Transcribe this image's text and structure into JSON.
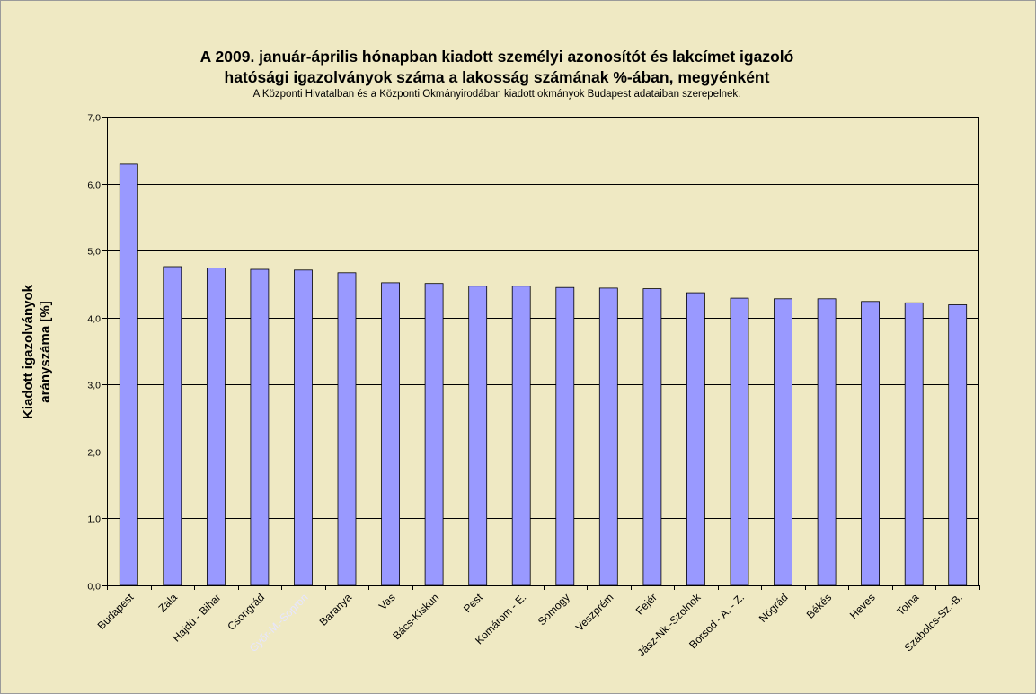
{
  "chart_data": {
    "type": "bar",
    "title_line1": "A 2009. január-április hónapban kiadott személyi azonosítót és lakcímet igazoló",
    "title_line2": "hatósági igazolványok száma a lakosság  számának %-ában, megyénként",
    "subtitle": "A Központi Hivatalban és a Központi Okmányirodában kiadott okmányok Budapest adataiban szerepelnek.",
    "ylabel_line1": "Kiadott igazolványok",
    "ylabel_line2": "arányszáma [%]",
    "xlabel": "",
    "ylim": [
      0,
      7
    ],
    "ytick_step": 1,
    "yticks": [
      "0,0",
      "1,0",
      "2,0",
      "3,0",
      "4,0",
      "5,0",
      "6,0",
      "7,0"
    ],
    "grid": true,
    "legend": "none",
    "categories": [
      "Budapest",
      "Zala",
      "Hajdú - Bihar",
      "Csongrád",
      "Győr-M.-Sopron",
      "Baranya",
      "Vas",
      "Bács-Kiskun",
      "Pest",
      "Komárom - E.",
      "Somogy",
      "Veszprém",
      "Fejér",
      "Jász-Nk.-Szolnok",
      "Borsod - A. - Z.",
      "Nógrád",
      "Békés",
      "Heves",
      "Tolna",
      "Szabolcs-Sz.-B."
    ],
    "values": [
      6.29,
      4.76,
      4.74,
      4.72,
      4.71,
      4.67,
      4.52,
      4.51,
      4.47,
      4.47,
      4.45,
      4.44,
      4.43,
      4.37,
      4.29,
      4.28,
      4.28,
      4.24,
      4.22,
      4.19
    ],
    "colors": {
      "bar_fill": "#9999ff",
      "bar_stroke": "#000000",
      "plot_background": "#efe9c3",
      "faded_label": "#e6e6ff"
    },
    "faded_category": "Győr-M.-Sopron"
  }
}
